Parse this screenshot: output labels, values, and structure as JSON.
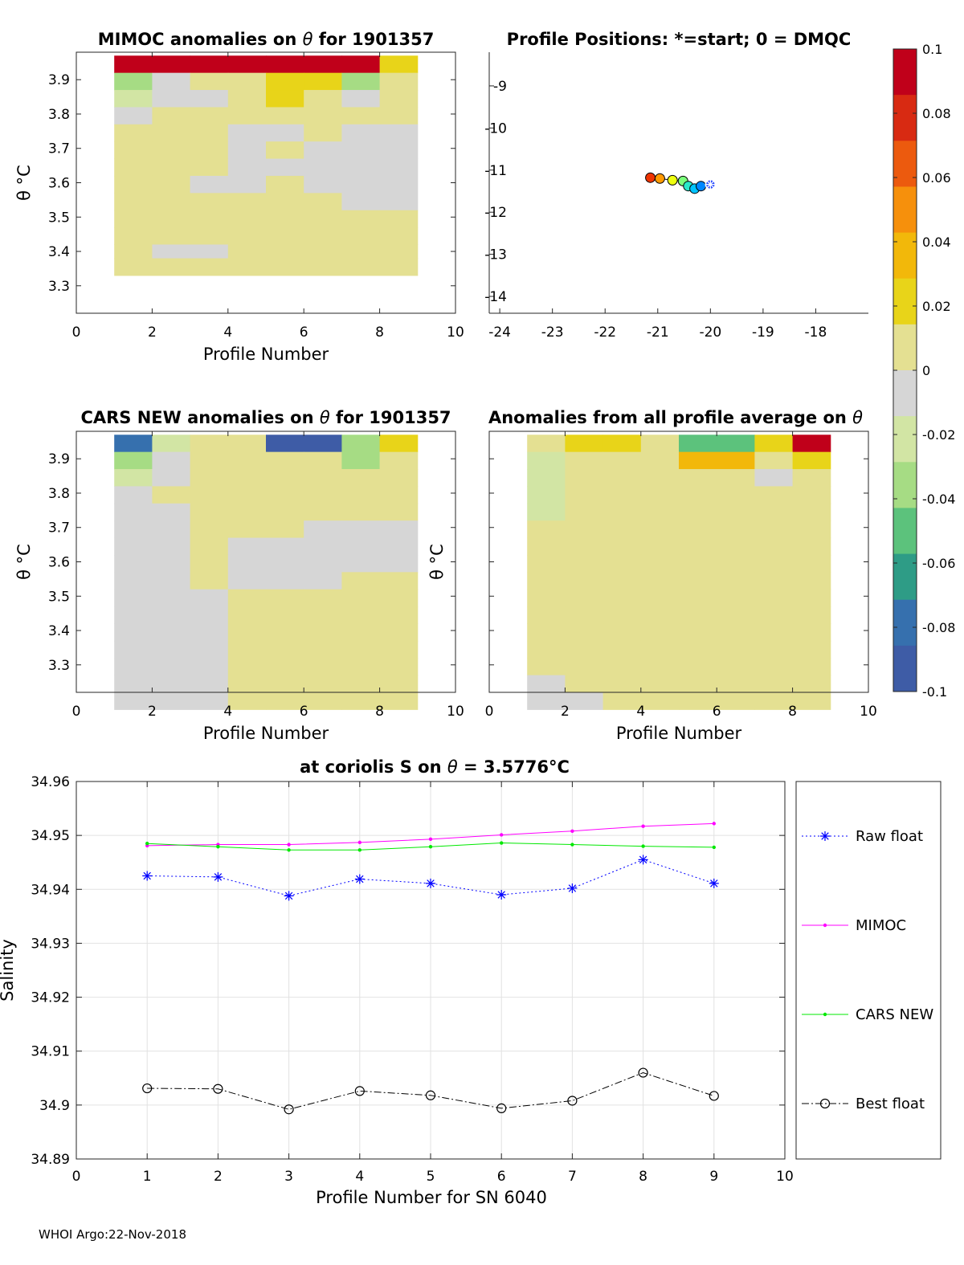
{
  "footer": "WHOI Argo:22-Nov-2018",
  "theta_symbol": "θ",
  "colorbar": {
    "range": [
      -0.1,
      0.1
    ],
    "tick_values": [
      0.1,
      0.08,
      0.06,
      0.04,
      0.02,
      0,
      -0.02,
      -0.04,
      -0.06,
      -0.08,
      -0.1
    ],
    "tick_labels": [
      "0.1",
      "0.08",
      "0.06",
      "0.04",
      "0.02",
      "0",
      "-0.02",
      "-0.04",
      "-0.06",
      "-0.08",
      "-0.1"
    ],
    "colors": [
      "#c0001a",
      "#d82a12",
      "#ec5a0e",
      "#f6900c",
      "#f2b80a",
      "#e8d419",
      "#e4e092",
      "#d6d6d6",
      "#d2e5a4",
      "#a6dc84",
      "#5cc27c",
      "#2e9c86",
      "#3670ae",
      "#3e5ca6"
    ]
  },
  "chart_data": [
    {
      "id": "mimoc_anomaly",
      "type": "heatmap",
      "title_prefix": "MIMOC anomalies on ",
      "title_suffix": "  for 1901357",
      "xlabel": "Profile Number",
      "ylabel": "θ °C",
      "xlim": [
        0,
        10
      ],
      "ylim": [
        3.22,
        3.98
      ],
      "xticks": [
        0,
        2,
        4,
        6,
        8,
        10
      ],
      "yticks": [
        3.3,
        3.4,
        3.5,
        3.6,
        3.7,
        3.8,
        3.9
      ],
      "x_edges": [
        1,
        2,
        3,
        4,
        5,
        6,
        7,
        8,
        9
      ],
      "theta_levels": [
        3.97,
        3.92,
        3.87,
        3.82,
        3.77,
        3.72,
        3.67,
        3.62,
        3.57,
        3.52,
        3.47,
        3.42,
        3.38
      ],
      "values": [
        [
          0.1,
          0.1,
          0.1,
          0.1,
          0.1,
          0.1,
          0.1,
          0.022
        ],
        [
          -0.03,
          -0.012,
          0.006,
          0.004,
          0.02,
          0.02,
          -0.035,
          0.006
        ],
        [
          -0.016,
          -0.006,
          -0.004,
          0.002,
          0.018,
          0.008,
          -0.004,
          0.004
        ],
        [
          -0.014,
          0.01,
          0.006,
          0.004,
          0.002,
          0.002,
          0.002,
          0.004
        ],
        [
          0.002,
          0.004,
          0.004,
          -0.004,
          -0.004,
          0.002,
          -0.008,
          -0.01
        ],
        [
          0.002,
          0.002,
          0.002,
          -0.008,
          0.002,
          -0.004,
          -0.012,
          -0.014
        ],
        [
          0.002,
          0.002,
          0.002,
          -0.006,
          -0.002,
          -0.004,
          -0.012,
          -0.014
        ],
        [
          0.002,
          0.002,
          -0.004,
          -0.002,
          0.002,
          -0.004,
          -0.012,
          -0.012
        ],
        [
          0.002,
          0.002,
          0.002,
          0.002,
          0.002,
          0.002,
          -0.004,
          -0.004
        ],
        [
          0.002,
          0.004,
          0.002,
          0.002,
          0.002,
          0.002,
          0.002,
          0.002
        ],
        [
          0.002,
          0.002,
          0.002,
          0.002,
          0.002,
          0.002,
          0.002,
          0.002
        ],
        [
          0.002,
          -0.008,
          -0.008,
          0.002,
          0.002,
          0.002,
          0.002,
          0.002
        ],
        [
          0.002,
          0.002,
          0.002,
          0.002,
          0.002,
          0.002,
          0.002,
          0.002
        ]
      ]
    },
    {
      "id": "profile_positions",
      "type": "scatter",
      "title": "Profile Positions: *=start; 0 = DMQC",
      "xlim": [
        -24.2,
        -17
      ],
      "ylim": [
        -14.4,
        -8.2
      ],
      "xticks": [
        -24,
        -23,
        -22,
        -21,
        -20,
        -19,
        -18
      ],
      "xtick_labels": [
        "-24",
        "-23",
        "-22",
        "-21",
        "-20",
        "-19",
        "-18"
      ],
      "yticks": [
        -9,
        -10,
        -11,
        -12,
        -13,
        -14
      ],
      "ytick_labels": [
        "-9",
        "-10",
        "-11",
        "-12",
        "-13",
        "-14"
      ],
      "points": [
        {
          "profile": 1,
          "lon": -20.0,
          "lat": -11.34,
          "color": "#2a4cff",
          "marker": "star"
        },
        {
          "profile": 2,
          "lon": -20.18,
          "lat": -11.38,
          "color": "#0087ff",
          "marker": "circle"
        },
        {
          "profile": 3,
          "lon": -20.3,
          "lat": -11.44,
          "color": "#00c3ff",
          "marker": "circle"
        },
        {
          "profile": 4,
          "lon": -20.42,
          "lat": -11.38,
          "color": "#29e8c9",
          "marker": "circle"
        },
        {
          "profile": 5,
          "lon": -20.52,
          "lat": -11.26,
          "color": "#7bff7b",
          "marker": "circle"
        },
        {
          "profile": 6,
          "lon": -20.72,
          "lat": -11.24,
          "color": "#eeff10",
          "marker": "circle"
        },
        {
          "profile": 7,
          "lon": -20.96,
          "lat": -11.2,
          "color": "#ff9a00",
          "marker": "circle"
        },
        {
          "profile": 8,
          "lon": -21.14,
          "lat": -11.18,
          "color": "#ee3400",
          "marker": "circle"
        }
      ]
    },
    {
      "id": "cars_anomaly",
      "type": "heatmap",
      "title_prefix": "CARS NEW anomalies on ",
      "title_suffix": " for 1901357",
      "xlabel": "Profile Number",
      "ylabel": "θ °C",
      "xlim": [
        0,
        10
      ],
      "ylim": [
        3.22,
        3.98
      ],
      "xticks": [
        0,
        2,
        4,
        6,
        8,
        10
      ],
      "yticks": [
        3.3,
        3.4,
        3.5,
        3.6,
        3.7,
        3.8,
        3.9
      ],
      "x_edges": [
        1,
        2,
        3,
        4,
        5,
        6,
        7,
        8,
        9
      ],
      "theta_levels": [
        3.97,
        3.92,
        3.87,
        3.82,
        3.77,
        3.72,
        3.67,
        3.62,
        3.57,
        3.52,
        3.47,
        3.42,
        3.37,
        3.32,
        3.27,
        3.22
      ],
      "values": [
        [
          -0.085,
          -0.025,
          0.006,
          0.004,
          -0.09,
          -0.09,
          -0.04,
          0.022
        ],
        [
          -0.036,
          -0.012,
          0.004,
          0.002,
          0.01,
          0.006,
          -0.036,
          0.002
        ],
        [
          -0.018,
          -0.004,
          0.002,
          0.002,
          0.01,
          0.002,
          0.002,
          0.002
        ],
        [
          -0.014,
          0.002,
          0.002,
          0.002,
          0.002,
          0.002,
          0.002,
          0.002
        ],
        [
          -0.006,
          -0.004,
          0.002,
          0.002,
          0.002,
          0.002,
          0.002,
          0.002
        ],
        [
          -0.006,
          -0.006,
          0.002,
          0.002,
          0.002,
          -0.004,
          -0.006,
          -0.01
        ],
        [
          -0.006,
          -0.006,
          0.002,
          -0.006,
          -0.004,
          -0.004,
          -0.006,
          -0.006
        ],
        [
          -0.006,
          -0.006,
          0.002,
          -0.006,
          -0.006,
          -0.006,
          -0.006,
          -0.006
        ],
        [
          -0.006,
          -0.006,
          0.002,
          -0.006,
          -0.006,
          -0.006,
          0.002,
          0.002
        ],
        [
          -0.006,
          -0.006,
          -0.006,
          0.002,
          0.002,
          0.002,
          0.002,
          0.002
        ],
        [
          -0.006,
          -0.006,
          -0.006,
          0.002,
          0.002,
          0.002,
          0.002,
          0.002
        ],
        [
          -0.006,
          -0.006,
          -0.006,
          0.002,
          0.002,
          0.002,
          0.002,
          0.002
        ],
        [
          -0.006,
          -0.006,
          -0.006,
          0.002,
          0.002,
          0.002,
          0.002,
          0.002
        ],
        [
          -0.006,
          -0.006,
          -0.006,
          0.002,
          0.002,
          0.002,
          0.002,
          0.002
        ],
        [
          -0.006,
          -0.006,
          -0.006,
          0.002,
          0.002,
          0.002,
          0.002,
          0.002
        ],
        [
          -0.006,
          -0.006,
          -0.006,
          0.002,
          0.002,
          0.002,
          0.002,
          0.002
        ]
      ]
    },
    {
      "id": "profile_average_anomaly",
      "type": "heatmap",
      "title_prefix": "Anomalies from all profile average on ",
      "title_suffix": "",
      "xlabel": "Profile Number",
      "ylabel": "θ °C",
      "xlim": [
        0,
        10
      ],
      "ylim": [
        3.22,
        3.98
      ],
      "xticks": [
        0,
        2,
        4,
        6,
        8,
        10
      ],
      "yticks": [
        3.3,
        3.4,
        3.5,
        3.6,
        3.7,
        3.8,
        3.9
      ],
      "x_edges": [
        1,
        2,
        3,
        4,
        5,
        6,
        7,
        8,
        9
      ],
      "theta_levels": [
        3.97,
        3.92,
        3.87,
        3.82,
        3.77,
        3.72,
        3.67,
        3.62,
        3.57,
        3.52,
        3.47,
        3.42,
        3.37,
        3.32,
        3.27,
        3.22
      ],
      "values": [
        [
          0.002,
          0.018,
          0.024,
          0.006,
          -0.055,
          -0.055,
          0.018,
          0.1
        ],
        [
          -0.02,
          0.006,
          0.006,
          0.002,
          0.034,
          0.03,
          0.006,
          0.026
        ],
        [
          -0.022,
          0.006,
          0.002,
          0.002,
          0.002,
          0.002,
          -0.01,
          0.002
        ],
        [
          -0.02,
          0.002,
          0.002,
          0.002,
          0.006,
          0.002,
          0.002,
          0.002
        ],
        [
          -0.016,
          0.002,
          0.002,
          0.002,
          0.006,
          0.002,
          0.002,
          0.002
        ],
        [
          0.002,
          0.002,
          0.002,
          0.002,
          0.002,
          0.002,
          0.002,
          0.002
        ],
        [
          0.002,
          0.002,
          0.002,
          0.002,
          0.002,
          0.002,
          0.002,
          0.002
        ],
        [
          0.002,
          0.002,
          0.002,
          0.002,
          0.002,
          0.002,
          0.002,
          0.002
        ],
        [
          0.002,
          0.002,
          0.002,
          0.002,
          0.002,
          0.002,
          0.002,
          0.002
        ],
        [
          0.002,
          0.002,
          0.002,
          0.002,
          0.002,
          0.002,
          0.002,
          0.002
        ],
        [
          0.002,
          0.002,
          0.002,
          0.002,
          0.002,
          0.002,
          0.006,
          0.004
        ],
        [
          0.002,
          0.002,
          0.002,
          0.002,
          0.002,
          0.002,
          0.006,
          0.008
        ],
        [
          0.002,
          0.002,
          0.002,
          0.002,
          0.002,
          0.002,
          0.002,
          0.006
        ],
        [
          0.002,
          0.002,
          0.002,
          0.002,
          0.002,
          0.002,
          0.002,
          0.002
        ],
        [
          -0.006,
          0.002,
          0.002,
          0.002,
          0.002,
          0.002,
          0.002,
          0.002
        ],
        [
          -0.006,
          -0.006,
          0.002,
          0.002,
          0.002,
          0.002,
          0.002,
          0.002
        ]
      ]
    },
    {
      "id": "salinity_series",
      "type": "line",
      "title_prefix": "at coriolis S on ",
      "title_suffix": " = 3.5776°C",
      "xlabel": "Profile Number for SN 6040",
      "ylabel": "Salinity",
      "xlim": [
        0,
        10
      ],
      "ylim": [
        34.89,
        34.96
      ],
      "xticks": [
        0,
        1,
        2,
        3,
        4,
        5,
        6,
        7,
        8,
        9,
        10
      ],
      "yticks": [
        34.89,
        34.9,
        34.91,
        34.92,
        34.93,
        34.94,
        34.95,
        34.96
      ],
      "ytick_labels": [
        "34.89",
        "34.9",
        "34.91",
        "34.92",
        "34.93",
        "34.94",
        "34.95",
        "34.96"
      ],
      "x": [
        1,
        2,
        3,
        4,
        5,
        6,
        7,
        8,
        9
      ],
      "series": [
        {
          "name": "Raw float",
          "color": "#0000ff",
          "marker": "star",
          "dash": "2 3",
          "values": [
            34.9425,
            34.9423,
            34.9388,
            34.9419,
            34.9411,
            34.939,
            34.9402,
            34.9455,
            34.9411
          ]
        },
        {
          "name": "MIMOC",
          "color": "#ff00ff",
          "marker": "dot",
          "dash": "",
          "values": [
            34.9481,
            34.9483,
            34.9483,
            34.9487,
            34.9493,
            34.9501,
            34.9508,
            34.9517,
            34.9522
          ]
        },
        {
          "name": "CARS NEW",
          "color": "#00e800",
          "marker": "dot",
          "dash": "",
          "values": [
            34.9485,
            34.9479,
            34.9473,
            34.9473,
            34.9479,
            34.9486,
            34.9483,
            34.948,
            34.9478
          ]
        },
        {
          "name": "Best float",
          "color": "#000000",
          "marker": "circle",
          "dash": "9 3 2 3",
          "values": [
            34.9031,
            34.903,
            34.8992,
            34.9026,
            34.9018,
            34.8994,
            34.9008,
            34.906,
            34.9017
          ]
        }
      ]
    }
  ]
}
